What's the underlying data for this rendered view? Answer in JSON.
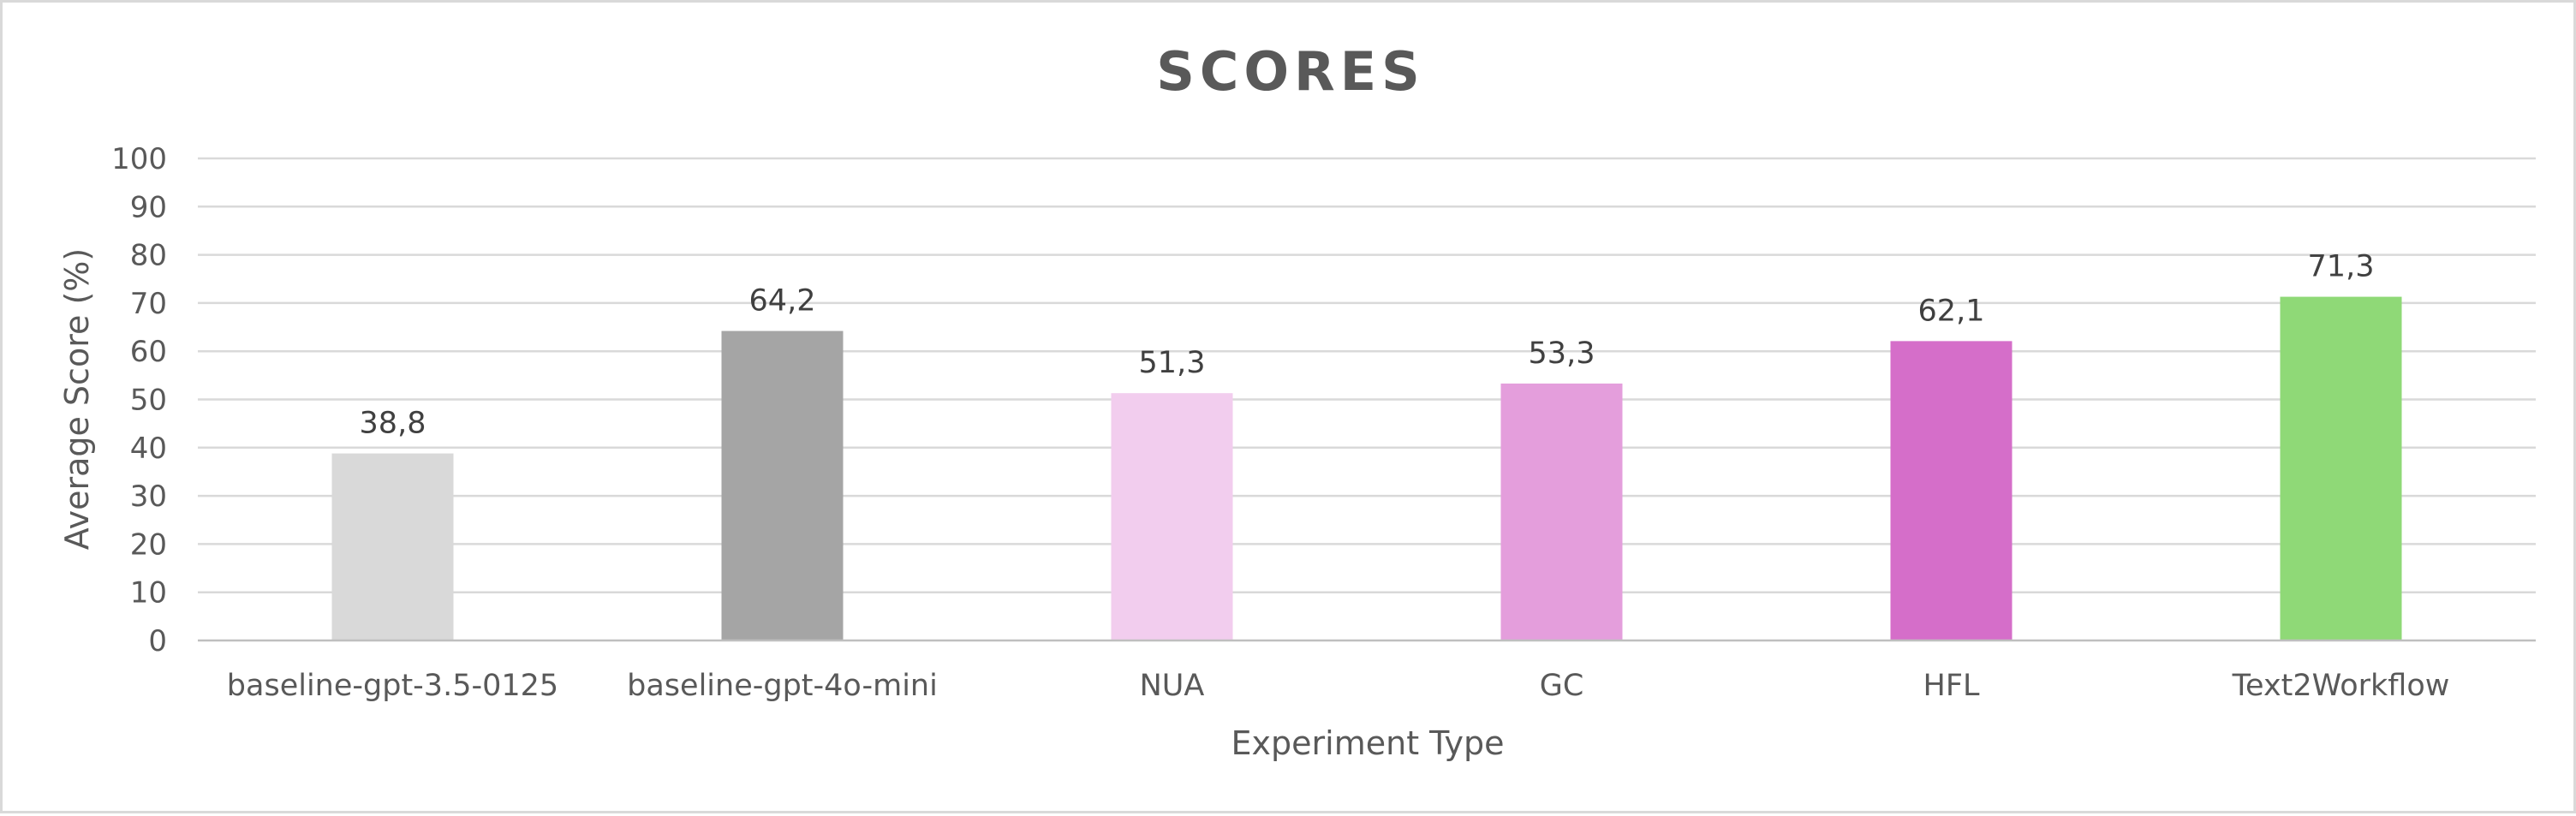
{
  "chart_data": {
    "type": "bar",
    "title": "SCORES",
    "xlabel": "Experiment Type",
    "ylabel": "Average Score (%)",
    "ylim": [
      0,
      100
    ],
    "ytick_step": 10,
    "yticks": [
      "0",
      "10",
      "20",
      "30",
      "40",
      "50",
      "60",
      "70",
      "80",
      "90",
      "100"
    ],
    "grid": true,
    "legend": "none",
    "categories": [
      "baseline-gpt-3.5-0125",
      "baseline-gpt-4o-mini",
      "NUA",
      "GC",
      "HFL",
      "Text2Workflow"
    ],
    "values": [
      38.8,
      64.2,
      51.3,
      53.3,
      62.1,
      71.3
    ],
    "data_labels": [
      "38,8",
      "64,2",
      "51,3",
      "53,3",
      "62,1",
      "71,3"
    ],
    "colors": [
      "#d9d9d9",
      "#a5a5a5",
      "#f2cdee",
      "#e49edc",
      "#d56ec9",
      "#8fd977"
    ]
  }
}
